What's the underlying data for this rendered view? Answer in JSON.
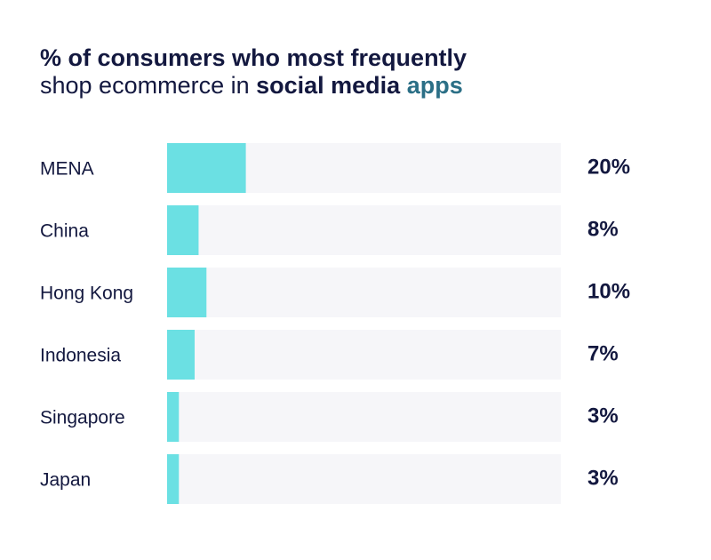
{
  "header": {
    "title_line1": "% of consumers who most frequently",
    "title_line2_plain": "shop ecommerce in ",
    "title_line2_bold_a": "social media",
    "title_line2_bold_b": "apps"
  },
  "colors": {
    "bar": "#6be0e3",
    "track": "#f6f6f9",
    "text": "#13183f",
    "accent": "#2b6f86"
  },
  "chart_data": {
    "type": "bar",
    "orientation": "horizontal",
    "title": "% of consumers who most frequently shop ecommerce in social media apps",
    "categories": [
      "MENA",
      "China",
      "Hong Kong",
      "Indonesia",
      "Singapore",
      "Japan"
    ],
    "values": [
      20,
      8,
      10,
      7,
      3,
      3
    ],
    "value_labels": [
      "20%",
      "8%",
      "10%",
      "7%",
      "3%",
      "3%"
    ],
    "xlim": [
      0,
      100
    ],
    "unit": "%",
    "grid": false,
    "legend": "none"
  }
}
